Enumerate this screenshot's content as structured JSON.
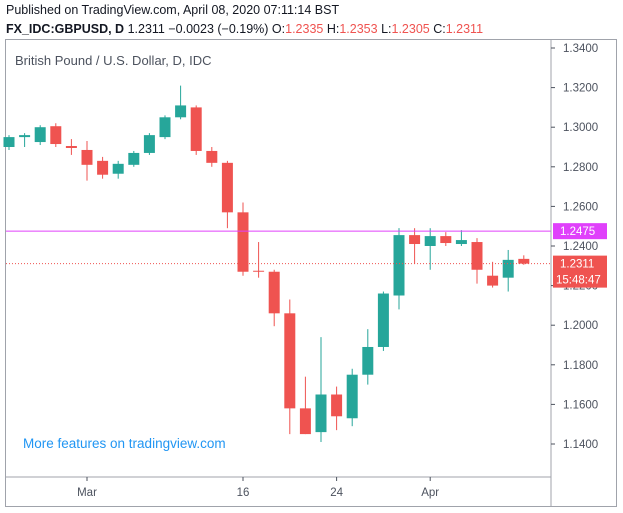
{
  "header": {
    "published": "Published on TradingView.com, April 08, 2020 07:11:14 BST",
    "symbol": "FX_IDC:GBPUSD, D",
    "last": "1.2311",
    "change": "−0.0023 (−0.19%)",
    "o_label": "O:",
    "o_value": "1.2335",
    "h_label": "H:",
    "h_value": "1.2353",
    "l_label": "L:",
    "l_value": "1.2305",
    "c_label": "C:",
    "c_value": "1.2311"
  },
  "legend": {
    "title": "British Pound / U.S. Dollar, D, IDC"
  },
  "promo": "More features on tradingview.com",
  "colors": {
    "up": "#26a69a",
    "down": "#ef5350",
    "horizontal_line": "#e040fb",
    "price_line": "#ef5350",
    "axis_text": "#4c525e",
    "border": "#a0a3ab"
  },
  "chart_data": {
    "type": "candlestick",
    "ylim": [
      1.13,
      1.345
    ],
    "y_ticks": [
      "1.3400",
      "1.3200",
      "1.3000",
      "1.2800",
      "1.2600",
      "1.2400",
      "1.2200",
      "1.2000",
      "1.1800",
      "1.1600",
      "1.1400"
    ],
    "x_ticks": [
      "Mar",
      "16",
      "24",
      "Apr"
    ],
    "x_tick_index": [
      5,
      15,
      21,
      27
    ],
    "horizontal_line": {
      "value": 1.2475,
      "label": "1.2475"
    },
    "last_price": {
      "value": 1.2311,
      "label": "1.2311",
      "countdown": "15:48:47"
    },
    "grid": false,
    "candles": [
      {
        "o": 1.29,
        "h": 1.296,
        "l": 1.2885,
        "c": 1.295
      },
      {
        "o": 1.295,
        "h": 1.297,
        "l": 1.29,
        "c": 1.296
      },
      {
        "o": 1.2925,
        "h": 1.301,
        "l": 1.291,
        "c": 1.3
      },
      {
        "o": 1.3005,
        "h": 1.302,
        "l": 1.29,
        "c": 1.2915
      },
      {
        "o": 1.2905,
        "h": 1.294,
        "l": 1.286,
        "c": 1.2895
      },
      {
        "o": 1.2885,
        "h": 1.293,
        "l": 1.273,
        "c": 1.281
      },
      {
        "o": 1.283,
        "h": 1.285,
        "l": 1.274,
        "c": 1.276
      },
      {
        "o": 1.2765,
        "h": 1.283,
        "l": 1.274,
        "c": 1.2815
      },
      {
        "o": 1.281,
        "h": 1.288,
        "l": 1.28,
        "c": 1.287
      },
      {
        "o": 1.287,
        "h": 1.297,
        "l": 1.286,
        "c": 1.296
      },
      {
        "o": 1.295,
        "h": 1.306,
        "l": 1.294,
        "c": 1.305
      },
      {
        "o": 1.305,
        "h": 1.321,
        "l": 1.304,
        "c": 1.311
      },
      {
        "o": 1.31,
        "h": 1.311,
        "l": 1.286,
        "c": 1.288
      },
      {
        "o": 1.288,
        "h": 1.29,
        "l": 1.28,
        "c": 1.282
      },
      {
        "o": 1.282,
        "h": 1.283,
        "l": 1.249,
        "c": 1.257
      },
      {
        "o": 1.257,
        "h": 1.262,
        "l": 1.225,
        "c": 1.227
      },
      {
        "o": 1.2275,
        "h": 1.242,
        "l": 1.224,
        "c": 1.227
      },
      {
        "o": 1.227,
        "h": 1.228,
        "l": 1.1995,
        "c": 1.206
      },
      {
        "o": 1.206,
        "h": 1.213,
        "l": 1.145,
        "c": 1.158
      },
      {
        "o": 1.158,
        "h": 1.174,
        "l": 1.145,
        "c": 1.145
      },
      {
        "o": 1.146,
        "h": 1.194,
        "l": 1.141,
        "c": 1.165
      },
      {
        "o": 1.165,
        "h": 1.169,
        "l": 1.147,
        "c": 1.154
      },
      {
        "o": 1.153,
        "h": 1.178,
        "l": 1.149,
        "c": 1.175
      },
      {
        "o": 1.175,
        "h": 1.198,
        "l": 1.17,
        "c": 1.189
      },
      {
        "o": 1.189,
        "h": 1.217,
        "l": 1.187,
        "c": 1.216
      },
      {
        "o": 1.215,
        "h": 1.249,
        "l": 1.208,
        "c": 1.2455
      },
      {
        "o": 1.2455,
        "h": 1.249,
        "l": 1.231,
        "c": 1.241
      },
      {
        "o": 1.24,
        "h": 1.249,
        "l": 1.228,
        "c": 1.245
      },
      {
        "o": 1.245,
        "h": 1.247,
        "l": 1.24,
        "c": 1.2415
      },
      {
        "o": 1.241,
        "h": 1.248,
        "l": 1.24,
        "c": 1.243
      },
      {
        "o": 1.242,
        "h": 1.244,
        "l": 1.221,
        "c": 1.228
      },
      {
        "o": 1.225,
        "h": 1.232,
        "l": 1.219,
        "c": 1.22
      },
      {
        "o": 1.224,
        "h": 1.238,
        "l": 1.217,
        "c": 1.233
      },
      {
        "o": 1.2335,
        "h": 1.2353,
        "l": 1.2305,
        "c": 1.2311
      }
    ]
  }
}
